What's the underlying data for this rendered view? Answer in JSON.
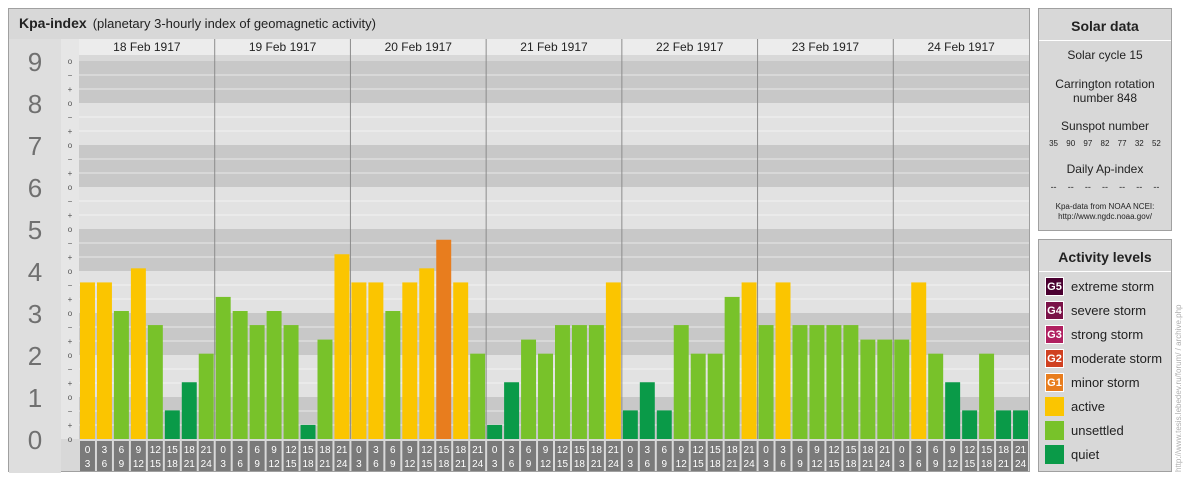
{
  "chart_data": {
    "type": "bar",
    "title": "Kpa-index",
    "subtitle": "(planetary 3-hourly index of geomagnetic activity)",
    "y_tick_labels": [
      "0",
      "1",
      "2",
      "3",
      "4",
      "5",
      "6",
      "7",
      "8",
      "9"
    ],
    "sub_tick_labels": [
      "o",
      "+",
      "−"
    ],
    "ylim": [
      0,
      9
    ],
    "days": [
      {
        "label": "18 Feb 1917",
        "values": [
          3.67,
          3.67,
          3.0,
          4.0,
          2.67,
          0.67,
          1.33,
          2.0
        ]
      },
      {
        "label": "19 Feb 1917",
        "values": [
          3.33,
          3.0,
          2.67,
          3.0,
          2.67,
          0.33,
          2.33,
          4.33
        ]
      },
      {
        "label": "20 Feb 1917",
        "values": [
          3.67,
          3.67,
          3.0,
          3.67,
          4.0,
          4.67,
          3.67,
          2.0
        ]
      },
      {
        "label": "21 Feb 1917",
        "values": [
          0.33,
          1.33,
          2.33,
          2.0,
          2.67,
          2.67,
          2.67,
          3.67
        ]
      },
      {
        "label": "22 Feb 1917",
        "values": [
          0.67,
          1.33,
          0.67,
          2.67,
          2.0,
          2.0,
          3.33,
          3.67
        ]
      },
      {
        "label": "23 Feb 1917",
        "values": [
          2.67,
          3.67,
          2.67,
          2.67,
          2.67,
          2.67,
          2.33,
          2.33
        ]
      },
      {
        "label": "24 Feb 1917",
        "values": [
          2.33,
          3.67,
          2.0,
          1.33,
          0.67,
          2.0,
          0.67,
          0.67
        ]
      }
    ],
    "interval_starts": [
      "0",
      "3",
      "6",
      "9",
      "12",
      "15",
      "18",
      "21"
    ],
    "interval_ends": [
      "3",
      "6",
      "9",
      "12",
      "15",
      "18",
      "21",
      "24"
    ],
    "colors": {
      "quiet": "#0a9a48",
      "unsettled": "#78c22a",
      "active": "#fbc500",
      "minor_storm": "#e87d1e"
    },
    "grid": true
  },
  "solar": {
    "title": "Solar data",
    "cycle": "Solar cycle 15",
    "carrington_line1": "Carrington rotation",
    "carrington_line2": "number 848",
    "sunspot_title": "Sunspot number",
    "sunspots": [
      "35",
      "90",
      "97",
      "82",
      "77",
      "32",
      "52"
    ],
    "ap_title": "Daily Ap-index",
    "ap_values": [
      "--",
      "--",
      "--",
      "--",
      "--",
      "--",
      "--"
    ],
    "source_line1": "Kpa-data from NOAA NCEI:",
    "source_line2": "http://www.ngdc.noaa.gov/"
  },
  "activity": {
    "title": "Activity levels",
    "levels": [
      {
        "code": "G5",
        "label": "extreme storm",
        "color": "#4a0030"
      },
      {
        "code": "G4",
        "label": "severe storm",
        "color": "#7a1248"
      },
      {
        "code": "G3",
        "label": "strong storm",
        "color": "#b02060"
      },
      {
        "code": "G2",
        "label": "moderate storm",
        "color": "#d04020"
      },
      {
        "code": "G1",
        "label": "minor storm",
        "color": "#e87d1e"
      },
      {
        "code": "",
        "label": "active",
        "color": "#fbc500"
      },
      {
        "code": "",
        "label": "unsettled",
        "color": "#78c22a"
      },
      {
        "code": "",
        "label": "quiet",
        "color": "#0a9a48"
      }
    ]
  },
  "watermark": "http://www.tesis.lebedev.ru/forum/ / archive.php"
}
